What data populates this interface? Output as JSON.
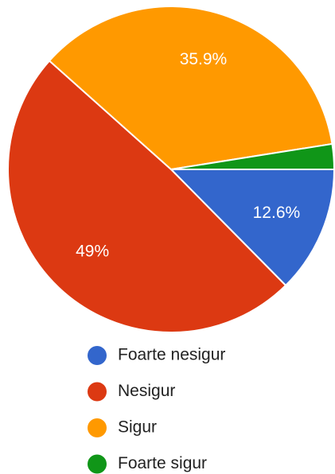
{
  "chart_data": {
    "type": "pie",
    "categories": [
      "Foarte nesigur",
      "Nesigur",
      "Sigur",
      "Foarte sigur"
    ],
    "values": [
      12.6,
      49,
      35.9,
      2.5
    ],
    "value_labels": [
      "12.6%",
      "49%",
      "35.9%",
      null
    ],
    "colors": [
      "#3366cc",
      "#dc3912",
      "#ff9900",
      "#109618"
    ]
  }
}
